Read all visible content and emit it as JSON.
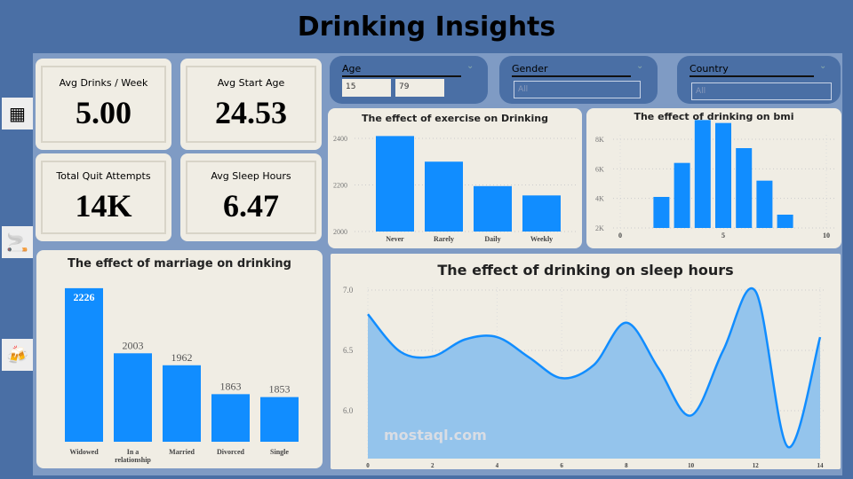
{
  "title": "Drinking Insights",
  "kpis": [
    {
      "label": "Avg Drinks / Week",
      "value": "5.00"
    },
    {
      "label": "Avg Start Age",
      "value": "24.53"
    },
    {
      "label": "Total Quit Attempts",
      "value": "14K"
    },
    {
      "label": "Avg Sleep Hours",
      "value": "6.47"
    }
  ],
  "filters": {
    "age": {
      "label": "Age",
      "min": "15",
      "max": "79"
    },
    "gender": {
      "label": "Gender",
      "value": "All"
    },
    "country": {
      "label": "Country",
      "value": "All"
    }
  },
  "icons": [
    "dashboard-icon",
    "cigarette-pack-icon",
    "beer-mugs-icon"
  ],
  "colors": {
    "bar": "#118dff",
    "area": "#94c4ec",
    "panel": "#f0ede4",
    "header": "#4a6fa5",
    "background": "#7f9bc4"
  },
  "watermark": "mostaql.com",
  "chart_data": [
    {
      "type": "bar",
      "title": "The effect of marriage on drinking",
      "categories": [
        "Widowed",
        "In a relationship",
        "Married",
        "Divorced",
        "Single"
      ],
      "values": [
        2226,
        2003,
        1962,
        1863,
        1853
      ],
      "data_labels": true,
      "ylim": [
        1700,
        2250
      ],
      "grid": false
    },
    {
      "type": "bar",
      "title": "The effect of exercise on Drinking",
      "categories": [
        "Never",
        "Rarely",
        "Daily",
        "Weekly"
      ],
      "values": [
        2410,
        2300,
        2195,
        2155
      ],
      "yticks": [
        2000,
        2200,
        2400
      ],
      "ylim": [
        2000,
        2450
      ],
      "grid": true
    },
    {
      "type": "bar",
      "title": "The effect of drinking on bmi",
      "x": [
        2,
        3,
        4,
        5,
        6,
        7,
        8
      ],
      "values": [
        4100,
        6400,
        9300,
        9100,
        7400,
        5200,
        2900
      ],
      "xticks": [
        0,
        5,
        10
      ],
      "yticks": [
        "2K",
        "4K",
        "6K",
        "8K"
      ],
      "ytick_values": [
        2000,
        4000,
        6000,
        8000
      ],
      "xlim": [
        0,
        10
      ],
      "ylim": [
        2000,
        9600
      ],
      "grid": true
    },
    {
      "type": "area",
      "title": "The effect of drinking on sleep hours",
      "x": [
        0,
        1,
        2,
        3,
        4,
        5,
        6,
        7,
        8,
        9,
        10,
        11,
        12,
        13,
        14
      ],
      "values": [
        6.8,
        6.49,
        6.45,
        6.59,
        6.61,
        6.44,
        6.27,
        6.38,
        6.73,
        6.35,
        5.96,
        6.5,
        6.99,
        5.7,
        6.61
      ],
      "xticks": [
        0,
        2,
        4,
        6,
        8,
        10,
        12,
        14
      ],
      "yticks": [
        "6.0",
        "6.5",
        "7.0"
      ],
      "ytick_values": [
        6.0,
        6.5,
        7.0
      ],
      "xlim": [
        0,
        14
      ],
      "ylim": [
        5.6,
        7.0
      ],
      "grid": true
    }
  ]
}
